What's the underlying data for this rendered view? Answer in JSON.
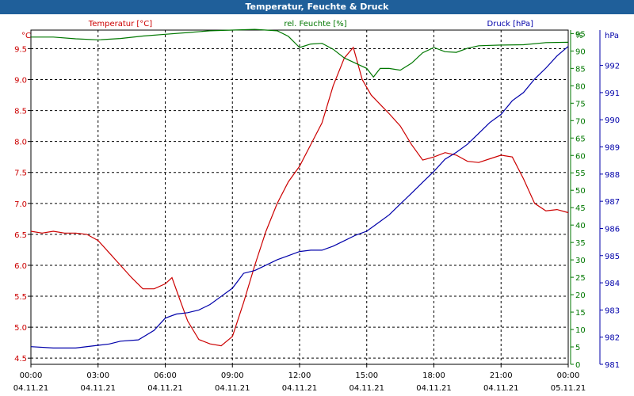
{
  "window": {
    "title": "Temperatur, Feuchte & Druck"
  },
  "chart_data": {
    "type": "line",
    "title": "Temperatur, Feuchte & Druck",
    "grid": true,
    "x": {
      "range_hours": [
        0,
        24
      ],
      "ticks": [
        {
          "h": 0,
          "time": "00:00",
          "date": "04.11.21"
        },
        {
          "h": 3,
          "time": "03:00",
          "date": "04.11.21"
        },
        {
          "h": 6,
          "time": "06:00",
          "date": "04.11.21"
        },
        {
          "h": 9,
          "time": "09:00",
          "date": "04.11.21"
        },
        {
          "h": 12,
          "time": "12:00",
          "date": "04.11.21"
        },
        {
          "h": 15,
          "time": "15:00",
          "date": "04.11.21"
        },
        {
          "h": 18,
          "time": "18:00",
          "date": "04.11.21"
        },
        {
          "h": 21,
          "time": "21:00",
          "date": "04.11.21"
        },
        {
          "h": 24,
          "time": "00:00",
          "date": "05.11.21"
        }
      ]
    },
    "axes": {
      "temp": {
        "unit": "°C",
        "range": [
          4.4,
          9.8
        ],
        "ticks": [
          "4.5",
          "5.0",
          "5.5",
          "6.0",
          "6.5",
          "7.0",
          "7.5",
          "8.0",
          "8.5",
          "9.0",
          "9.5"
        ],
        "color": "#cc0000"
      },
      "hum": {
        "unit": "%",
        "range": [
          0,
          96
        ],
        "ticks": [
          "0",
          "5",
          "10",
          "15",
          "20",
          "25",
          "30",
          "35",
          "40",
          "45",
          "50",
          "55",
          "60",
          "65",
          "70",
          "75",
          "80",
          "85",
          "90",
          "95"
        ],
        "color": "#007700"
      },
      "press": {
        "unit": "hPa",
        "range": [
          981,
          993.3
        ],
        "ticks": [
          "981",
          "982",
          "983",
          "984",
          "985",
          "986",
          "987",
          "988",
          "989",
          "990",
          "991",
          "992"
        ],
        "color": "#0000aa"
      }
    },
    "series": [
      {
        "name": "Temperatur [°C]",
        "axis": "temp",
        "color": "#cc0000",
        "points": [
          [
            0,
            6.55
          ],
          [
            0.5,
            6.52
          ],
          [
            1,
            6.55
          ],
          [
            1.5,
            6.52
          ],
          [
            2,
            6.52
          ],
          [
            2.5,
            6.5
          ],
          [
            3,
            6.4
          ],
          [
            3.5,
            6.2
          ],
          [
            4,
            6.0
          ],
          [
            4.5,
            5.8
          ],
          [
            5,
            5.62
          ],
          [
            5.5,
            5.62
          ],
          [
            6,
            5.7
          ],
          [
            6.3,
            5.8
          ],
          [
            6.6,
            5.5
          ],
          [
            7,
            5.1
          ],
          [
            7.5,
            4.8
          ],
          [
            8,
            4.73
          ],
          [
            8.5,
            4.7
          ],
          [
            9,
            4.85
          ],
          [
            9.5,
            5.4
          ],
          [
            10,
            6.0
          ],
          [
            10.5,
            6.55
          ],
          [
            11,
            7.0
          ],
          [
            11.5,
            7.35
          ],
          [
            12,
            7.6
          ],
          [
            12.5,
            7.95
          ],
          [
            13,
            8.3
          ],
          [
            13.5,
            8.9
          ],
          [
            14,
            9.35
          ],
          [
            14.4,
            9.52
          ],
          [
            14.8,
            9.0
          ],
          [
            15.2,
            8.75
          ],
          [
            15.6,
            8.6
          ],
          [
            16,
            8.45
          ],
          [
            16.5,
            8.25
          ],
          [
            17,
            7.95
          ],
          [
            17.5,
            7.7
          ],
          [
            18,
            7.75
          ],
          [
            18.5,
            7.82
          ],
          [
            19,
            7.78
          ],
          [
            19.5,
            7.68
          ],
          [
            20,
            7.66
          ],
          [
            20.5,
            7.72
          ],
          [
            21,
            7.78
          ],
          [
            21.5,
            7.75
          ],
          [
            22,
            7.4
          ],
          [
            22.5,
            7.0
          ],
          [
            23,
            6.88
          ],
          [
            23.5,
            6.9
          ],
          [
            24,
            6.85
          ]
        ]
      },
      {
        "name": "rel. Feuchte [%]",
        "axis": "hum",
        "color": "#007700",
        "points": [
          [
            0,
            94
          ],
          [
            1,
            94
          ],
          [
            2,
            93.5
          ],
          [
            3,
            93.2
          ],
          [
            4,
            93.6
          ],
          [
            5,
            94.3
          ],
          [
            6,
            94.8
          ],
          [
            7,
            95.3
          ],
          [
            8,
            95.8
          ],
          [
            9,
            96.0
          ],
          [
            10,
            96.2
          ],
          [
            11,
            95.8
          ],
          [
            11.5,
            94.2
          ],
          [
            12,
            91
          ],
          [
            12.5,
            92
          ],
          [
            13,
            92.2
          ],
          [
            13.5,
            90.5
          ],
          [
            14,
            88
          ],
          [
            14.5,
            86.5
          ],
          [
            15,
            85
          ],
          [
            15.3,
            82.5
          ],
          [
            15.6,
            85
          ],
          [
            16,
            85
          ],
          [
            16.5,
            84.5
          ],
          [
            17,
            86.5
          ],
          [
            17.5,
            89.5
          ],
          [
            18,
            91
          ],
          [
            18.5,
            89.8
          ],
          [
            19,
            89.6
          ],
          [
            19.5,
            90.8
          ],
          [
            20,
            91.5
          ],
          [
            21,
            91.7
          ],
          [
            22,
            91.8
          ],
          [
            23,
            92.4
          ],
          [
            24,
            92.5
          ]
        ]
      },
      {
        "name": "Druck [hPa]",
        "axis": "press",
        "color": "#0000aa",
        "points": [
          [
            0,
            981.65
          ],
          [
            1,
            981.6
          ],
          [
            2,
            981.6
          ],
          [
            3,
            981.7
          ],
          [
            3.5,
            981.75
          ],
          [
            4,
            981.85
          ],
          [
            4.8,
            981.9
          ],
          [
            5.5,
            982.25
          ],
          [
            6,
            982.7
          ],
          [
            6.5,
            982.85
          ],
          [
            7,
            982.9
          ],
          [
            7.5,
            983.0
          ],
          [
            8,
            983.2
          ],
          [
            8.5,
            983.5
          ],
          [
            9,
            983.8
          ],
          [
            9.5,
            984.35
          ],
          [
            10,
            984.45
          ],
          [
            10.5,
            984.65
          ],
          [
            11,
            984.85
          ],
          [
            11.5,
            985.0
          ],
          [
            12,
            985.15
          ],
          [
            12.5,
            985.2
          ],
          [
            13,
            985.2
          ],
          [
            13.5,
            985.35
          ],
          [
            14,
            985.55
          ],
          [
            14.5,
            985.75
          ],
          [
            15,
            985.9
          ],
          [
            15.5,
            986.2
          ],
          [
            16,
            986.5
          ],
          [
            16.5,
            986.9
          ],
          [
            17,
            987.3
          ],
          [
            17.5,
            987.7
          ],
          [
            18,
            988.1
          ],
          [
            18.5,
            988.55
          ],
          [
            19,
            988.8
          ],
          [
            19.5,
            989.1
          ],
          [
            20,
            989.5
          ],
          [
            20.5,
            989.9
          ],
          [
            21,
            990.2
          ],
          [
            21.5,
            990.7
          ],
          [
            22,
            991.0
          ],
          [
            22.5,
            991.5
          ],
          [
            23,
            991.9
          ],
          [
            23.5,
            992.35
          ],
          [
            24,
            992.7
          ]
        ]
      }
    ]
  }
}
